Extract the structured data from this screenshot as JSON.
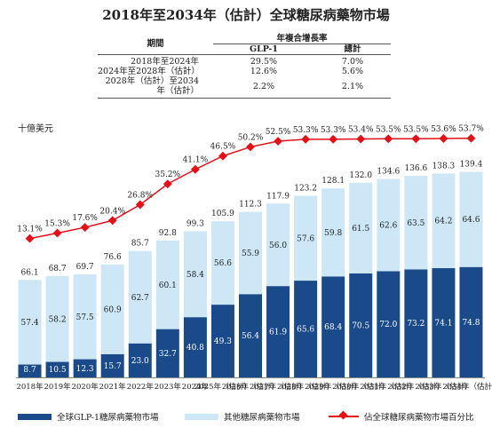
{
  "title": "2018年至2034年（估計）全球糖尿病藥物市場",
  "cagr_table": {
    "header_period": "期間",
    "header_group": "年複合增長率",
    "col_glp1": "GLP-1",
    "col_total": "總計",
    "rows": [
      {
        "period": "2018年至2024年",
        "glp1": "29.5%",
        "total": "7.0%"
      },
      {
        "period": "2024年至2028年（估計）",
        "glp1": "12.6%",
        "total": "5.6%"
      },
      {
        "period": "2028年（估計）至2034年（估計）",
        "glp1": "2.2%",
        "total": "2.1%"
      }
    ]
  },
  "unit_label": "十億美元",
  "legend": {
    "glp1": "全球GLP-1糖尿病藥物市場",
    "other": "其他糖尿病藥物市場",
    "pct": "佔全球糖尿病藥物市場百分比"
  },
  "colors": {
    "glp1": "#1a4a8a",
    "other": "#cde7f6",
    "line": "#e3101a"
  },
  "chart_data": {
    "type": "bar",
    "categories": [
      "2018年",
      "2019年",
      "2020年",
      "2021年",
      "2022年",
      "2023年",
      "2024年",
      "2025年（估計）",
      "2026年（估計）",
      "2027年（估計）",
      "2028年（估計）",
      "2029年（估計）",
      "2030年（估計）",
      "2031年（估計）",
      "2032年（估計）",
      "2033年（估計）",
      "2034年（估計）"
    ],
    "series": [
      {
        "name": "全球GLP-1糖尿病藥物市場",
        "values": [
          8.7,
          10.5,
          12.3,
          15.7,
          23.0,
          32.7,
          40.8,
          49.3,
          56.4,
          61.9,
          65.6,
          68.4,
          70.5,
          72.0,
          73.2,
          74.1,
          74.8
        ]
      },
      {
        "name": "其他糖尿病藥物市場",
        "values": [
          57.4,
          58.2,
          57.5,
          60.9,
          62.7,
          60.1,
          58.4,
          56.6,
          55.9,
          56.0,
          57.6,
          59.8,
          61.5,
          62.6,
          63.5,
          64.2,
          64.6
        ]
      }
    ],
    "totals": [
      66.1,
      68.7,
      69.7,
      76.6,
      85.7,
      92.8,
      99.3,
      105.9,
      112.3,
      117.9,
      123.2,
      128.1,
      132.0,
      134.6,
      136.6,
      138.3,
      139.4
    ],
    "line_series": {
      "name": "佔全球糖尿病藥物市場百分比",
      "values": [
        13.1,
        15.3,
        17.6,
        20.4,
        26.8,
        35.2,
        41.1,
        46.5,
        50.2,
        52.5,
        53.3,
        53.3,
        53.4,
        53.5,
        53.5,
        53.6,
        53.7
      ]
    },
    "stacked": true,
    "ylabel": "十億美元"
  }
}
